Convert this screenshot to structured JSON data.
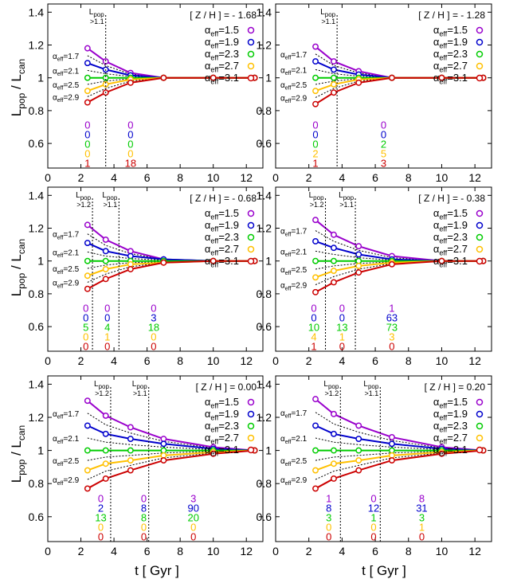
{
  "figure": {
    "ylabel_main": "L",
    "ylabel_sub1": "pop",
    "ylabel_sep": " / L",
    "ylabel_sub2": "can",
    "xlabel": "t  [ Gyr ]"
  },
  "colors": [
    "#9900cc",
    "#0000cc",
    "#00cc00",
    "#ffc000",
    "#cc0000"
  ],
  "chart_data": [
    {
      "type": "line",
      "title": "[ Z / H ] = - 1.68",
      "xlim": [
        0,
        13
      ],
      "ylim": [
        0.45,
        1.45
      ],
      "xticks": [
        0,
        2,
        4,
        6,
        8,
        10,
        12
      ],
      "yticks": [
        0.6,
        0.8,
        1,
        1.2,
        1.4
      ],
      "x": [
        2.4,
        3.5,
        5,
        7,
        10,
        12.5
      ],
      "series": [
        {
          "name": "αeff=1.5",
          "values": [
            1.18,
            1.1,
            1.03,
            1.0,
            1.0,
            1.0
          ]
        },
        {
          "name": "αeff=1.9",
          "values": [
            1.09,
            1.05,
            1.015,
            1.0,
            1.0,
            1.0
          ]
        },
        {
          "name": "αeff=2.3",
          "values": [
            1.0,
            1.0,
            1.0,
            1.0,
            1.0,
            1.0
          ]
        },
        {
          "name": "αeff=2.7",
          "values": [
            0.92,
            0.96,
            0.99,
            1.0,
            1.0,
            1.0
          ]
        },
        {
          "name": "αeff=3.1",
          "values": [
            0.85,
            0.91,
            0.97,
            1.0,
            1.0,
            1.0
          ]
        }
      ],
      "left_labels": [
        "αeff=1.7",
        "αeff=2.1",
        "αeff=2.5",
        "αeff=2.9"
      ],
      "vlines": [
        {
          "x": 3.5,
          "label1": "L",
          "label1_sub": "pop",
          "label2": ">1.1"
        }
      ],
      "counts": [
        {
          "x": 2.4,
          "values": [
            "0",
            "0",
            "0",
            "0",
            "1"
          ]
        },
        {
          "x": 5.0,
          "values": [
            "0",
            "0",
            "0",
            "0",
            "18"
          ]
        }
      ]
    },
    {
      "type": "line",
      "title": "[ Z / H ] = - 1.28",
      "xlim": [
        0,
        13
      ],
      "ylim": [
        0.45,
        1.45
      ],
      "xticks": [
        0,
        2,
        4,
        6,
        8,
        10,
        12
      ],
      "yticks": [
        0.6,
        0.8,
        1,
        1.2,
        1.4
      ],
      "x": [
        2.4,
        3.5,
        5,
        7,
        10,
        12.5
      ],
      "series": [
        {
          "name": "αeff=1.5",
          "values": [
            1.19,
            1.1,
            1.04,
            1.0,
            1.0,
            1.0
          ]
        },
        {
          "name": "αeff=1.9",
          "values": [
            1.1,
            1.05,
            1.02,
            1.0,
            1.0,
            1.0
          ]
        },
        {
          "name": "αeff=2.3",
          "values": [
            1.0,
            1.0,
            1.0,
            1.0,
            1.0,
            1.0
          ]
        },
        {
          "name": "αeff=2.7",
          "values": [
            0.92,
            0.96,
            0.99,
            1.0,
            1.0,
            1.0
          ]
        },
        {
          "name": "αeff=3.1",
          "values": [
            0.84,
            0.91,
            0.97,
            1.0,
            1.0,
            1.0
          ]
        }
      ],
      "left_labels": [
        "αeff=1.7",
        "αeff=2.1",
        "αeff=2.5",
        "αeff=2.9"
      ],
      "vlines": [
        {
          "x": 3.7,
          "label1": "L",
          "label1_sub": "pop",
          "label2": ">1.1"
        }
      ],
      "counts": [
        {
          "x": 2.4,
          "values": [
            "0",
            "0",
            "0",
            "2",
            "1"
          ]
        },
        {
          "x": 6.5,
          "values": [
            "0",
            "0",
            "2",
            "5",
            "3"
          ]
        }
      ]
    },
    {
      "type": "line",
      "title": "[ Z / H ] = - 0.68",
      "xlim": [
        0,
        13
      ],
      "ylim": [
        0.45,
        1.45
      ],
      "xticks": [
        0,
        2,
        4,
        6,
        8,
        10,
        12
      ],
      "yticks": [
        0.6,
        0.8,
        1,
        1.2,
        1.4
      ],
      "x": [
        2.4,
        3.5,
        5,
        7,
        10,
        12.5
      ],
      "series": [
        {
          "name": "αeff=1.5",
          "values": [
            1.22,
            1.13,
            1.06,
            1.01,
            1.0,
            1.0
          ]
        },
        {
          "name": "αeff=1.9",
          "values": [
            1.11,
            1.06,
            1.03,
            1.01,
            1.0,
            1.0
          ]
        },
        {
          "name": "αeff=2.3",
          "values": [
            1.0,
            1.0,
            1.0,
            1.0,
            1.0,
            1.0
          ]
        },
        {
          "name": "αeff=2.7",
          "values": [
            0.91,
            0.95,
            0.98,
            0.99,
            1.0,
            1.0
          ]
        },
        {
          "name": "αeff=3.1",
          "values": [
            0.83,
            0.89,
            0.95,
            0.99,
            1.0,
            1.0
          ]
        }
      ],
      "left_labels": [
        "αeff=1.7",
        "αeff=2.1",
        "αeff=2.5",
        "αeff=2.9"
      ],
      "vlines": [
        {
          "x": 2.7,
          "label1": "L",
          "label1_sub": "pop",
          "label2": ">1.2"
        },
        {
          "x": 4.3,
          "label1": "L",
          "label1_sub": "pop",
          "label2": ">1.1"
        }
      ],
      "counts": [
        {
          "x": 2.3,
          "values": [
            "0",
            "0",
            "5",
            "0",
            "0"
          ]
        },
        {
          "x": 3.6,
          "values": [
            "0",
            "0",
            "4",
            "1",
            "0"
          ]
        },
        {
          "x": 6.4,
          "values": [
            "0",
            "3",
            "18",
            "0",
            "0"
          ]
        }
      ]
    },
    {
      "type": "line",
      "title": "[ Z / H ] = - 0.38",
      "xlim": [
        0,
        13
      ],
      "ylim": [
        0.45,
        1.45
      ],
      "xticks": [
        0,
        2,
        4,
        6,
        8,
        10,
        12
      ],
      "yticks": [
        0.6,
        0.8,
        1,
        1.2,
        1.4
      ],
      "x": [
        2.4,
        3.5,
        5,
        7,
        10,
        12.5
      ],
      "series": [
        {
          "name": "αeff=1.5",
          "values": [
            1.25,
            1.16,
            1.09,
            1.03,
            1.0,
            1.0
          ]
        },
        {
          "name": "αeff=1.9",
          "values": [
            1.12,
            1.08,
            1.04,
            1.01,
            1.0,
            1.0
          ]
        },
        {
          "name": "αeff=2.3",
          "values": [
            1.0,
            1.0,
            1.0,
            1.0,
            1.0,
            1.0
          ]
        },
        {
          "name": "αeff=2.7",
          "values": [
            0.9,
            0.94,
            0.97,
            0.99,
            1.0,
            1.0
          ]
        },
        {
          "name": "αeff=3.1",
          "values": [
            0.81,
            0.87,
            0.93,
            0.98,
            1.0,
            1.0
          ]
        }
      ],
      "left_labels": [
        "αeff=1.7",
        "αeff=2.1",
        "αeff=2.5",
        "αeff=2.9"
      ],
      "vlines": [
        {
          "x": 3.0,
          "label1": "L",
          "label1_sub": "pop",
          "label2": ">1.2"
        },
        {
          "x": 4.8,
          "label1": "L",
          "label1_sub": "pop",
          "label2": ">1.1"
        }
      ],
      "counts": [
        {
          "x": 2.3,
          "values": [
            "0",
            "0",
            "10",
            "4",
            "1"
          ]
        },
        {
          "x": 4.0,
          "values": [
            "0",
            "0",
            "13",
            "1",
            "0"
          ]
        },
        {
          "x": 7.0,
          "values": [
            "1",
            "63",
            "73",
            "3",
            "0"
          ]
        }
      ]
    },
    {
      "type": "line",
      "title": "[ Z / H ] = 0.00",
      "xlim": [
        0,
        13
      ],
      "ylim": [
        0.45,
        1.45
      ],
      "xticks": [
        0,
        2,
        4,
        6,
        8,
        10,
        12
      ],
      "yticks": [
        0.6,
        0.8,
        1,
        1.2,
        1.4
      ],
      "x": [
        2.4,
        3.5,
        5,
        7,
        10,
        12.5
      ],
      "series": [
        {
          "name": "αeff=1.5",
          "values": [
            1.3,
            1.21,
            1.14,
            1.07,
            1.02,
            1.0
          ]
        },
        {
          "name": "αeff=1.9",
          "values": [
            1.15,
            1.1,
            1.07,
            1.04,
            1.01,
            1.0
          ]
        },
        {
          "name": "αeff=2.3",
          "values": [
            1.0,
            1.0,
            1.0,
            1.0,
            1.0,
            1.0
          ]
        },
        {
          "name": "αeff=2.7",
          "values": [
            0.88,
            0.92,
            0.94,
            0.97,
            0.99,
            1.0
          ]
        },
        {
          "name": "αeff=3.1",
          "values": [
            0.77,
            0.83,
            0.88,
            0.94,
            0.98,
            1.0
          ]
        }
      ],
      "left_labels": [
        "αeff=1.7",
        "αeff=2.1",
        "αeff=2.5",
        "αeff=2.9"
      ],
      "vlines": [
        {
          "x": 3.8,
          "label1": "L",
          "label1_sub": "pop",
          "label2": ">1.2"
        },
        {
          "x": 6.1,
          "label1": "L",
          "label1_sub": "pop",
          "label2": ">1.1"
        }
      ],
      "counts": [
        {
          "x": 3.2,
          "values": [
            "0",
            "2",
            "13",
            "0",
            "0"
          ]
        },
        {
          "x": 5.8,
          "values": [
            "0",
            "8",
            "8",
            "0",
            "0"
          ]
        },
        {
          "x": 8.8,
          "values": [
            "3",
            "90",
            "20",
            "0",
            "0"
          ]
        }
      ]
    },
    {
      "type": "line",
      "title": "[ Z / H ] = 0.20",
      "xlim": [
        0,
        13
      ],
      "ylim": [
        0.45,
        1.45
      ],
      "xticks": [
        0,
        2,
        4,
        6,
        8,
        10,
        12
      ],
      "yticks": [
        0.6,
        0.8,
        1,
        1.2,
        1.4
      ],
      "x": [
        2.4,
        3.5,
        5,
        7,
        10,
        12.5
      ],
      "series": [
        {
          "name": "αeff=1.5",
          "values": [
            1.31,
            1.22,
            1.15,
            1.08,
            1.02,
            1.0
          ]
        },
        {
          "name": "αeff=1.9",
          "values": [
            1.15,
            1.1,
            1.07,
            1.04,
            1.01,
            1.0
          ]
        },
        {
          "name": "αeff=2.3",
          "values": [
            1.0,
            1.0,
            1.0,
            1.0,
            1.0,
            1.0
          ]
        },
        {
          "name": "αeff=2.7",
          "values": [
            0.88,
            0.92,
            0.94,
            0.97,
            0.99,
            1.0
          ]
        },
        {
          "name": "αeff=3.1",
          "values": [
            0.77,
            0.83,
            0.88,
            0.94,
            0.98,
            1.0
          ]
        }
      ],
      "left_labels": [
        "αeff=1.7",
        "αeff=2.1",
        "αeff=2.5",
        "αeff=2.9"
      ],
      "vlines": [
        {
          "x": 3.9,
          "label1": "L",
          "label1_sub": "pop",
          "label2": ">1.2"
        },
        {
          "x": 6.3,
          "label1": "L",
          "label1_sub": "pop",
          "label2": ">1.1"
        }
      ],
      "counts": [
        {
          "x": 3.2,
          "values": [
            "1",
            "8",
            "3",
            "0",
            "0"
          ]
        },
        {
          "x": 5.9,
          "values": [
            "0",
            "12",
            "1",
            "0",
            "0"
          ]
        },
        {
          "x": 8.8,
          "values": [
            "8",
            "31",
            "3",
            "1",
            "0"
          ]
        }
      ]
    }
  ]
}
